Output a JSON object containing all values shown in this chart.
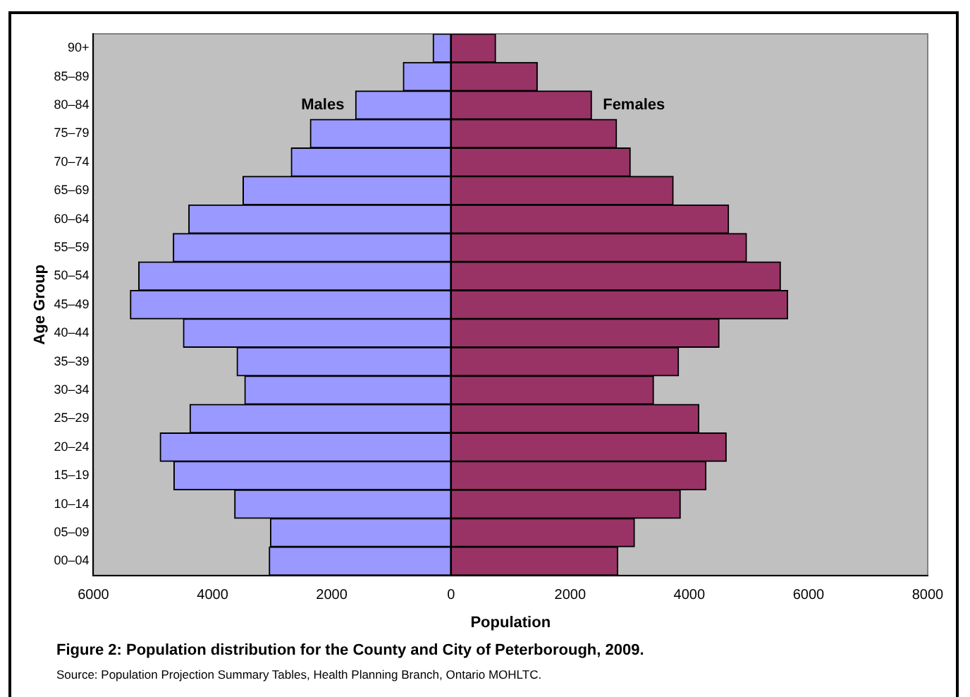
{
  "chart_data": {
    "type": "bar",
    "orientation": "horizontal",
    "stacked": true,
    "title": "Figure 2: Population distribution for the County and City of Peterborough, 2009.",
    "xlabel": "Population",
    "ylabel": "Age Group",
    "categories": [
      "90+",
      "85–89",
      "80–84",
      "75–79",
      "70–74",
      "65–69",
      "60–64",
      "55–59",
      "50–54",
      "45–49",
      "40–44",
      "35–39",
      "30–34",
      "25–29",
      "20–24",
      "15–19",
      "10–14",
      "05–09",
      "00–04"
    ],
    "series": [
      {
        "name": "Males",
        "color": "#9999ff",
        "values": [
          -300,
          -800,
          -1600,
          -2360,
          -2680,
          -3490,
          -4400,
          -4660,
          -5240,
          -5380,
          -4490,
          -3590,
          -3460,
          -4380,
          -4880,
          -4650,
          -3630,
          -3030,
          -3050
        ]
      },
      {
        "name": "Females",
        "color": "#993366",
        "values": [
          750,
          1450,
          2360,
          2780,
          3010,
          3730,
          4660,
          4960,
          5530,
          5650,
          4500,
          3820,
          3400,
          4160,
          4620,
          4280,
          3850,
          3080,
          2800
        ]
      }
    ],
    "xlim": [
      -6000,
      8000
    ],
    "xticks": [
      {
        "value": -6000,
        "label": "6000"
      },
      {
        "value": -4000,
        "label": "4000"
      },
      {
        "value": -2000,
        "label": "2000"
      },
      0,
      2000,
      4000,
      6000,
      8000
    ],
    "grid": false,
    "legend": false,
    "annotations": [
      "Source: Population Projection Summary Tables, Health Planning Branch, Ontario MOHLTC."
    ]
  }
}
